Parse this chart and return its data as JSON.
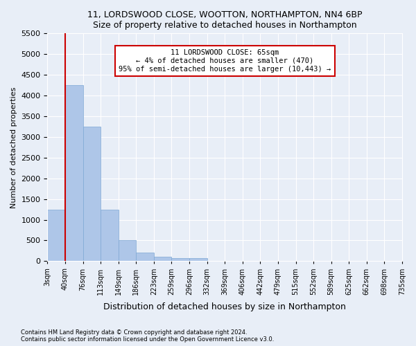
{
  "title": "11, LORDSWOOD CLOSE, WOOTTON, NORTHAMPTON, NN4 6BP",
  "subtitle": "Size of property relative to detached houses in Northampton",
  "xlabel": "Distribution of detached houses by size in Northampton",
  "ylabel": "Number of detached properties",
  "bin_labels": [
    "3sqm",
    "40sqm",
    "76sqm",
    "113sqm",
    "149sqm",
    "186sqm",
    "223sqm",
    "259sqm",
    "296sqm",
    "332sqm",
    "369sqm",
    "406sqm",
    "442sqm",
    "479sqm",
    "515sqm",
    "552sqm",
    "589sqm",
    "625sqm",
    "662sqm",
    "698sqm",
    "735sqm"
  ],
  "bar_heights": [
    1250,
    4250,
    3250,
    1250,
    500,
    200,
    100,
    75,
    75,
    0,
    0,
    0,
    0,
    0,
    0,
    0,
    0,
    0,
    0,
    0
  ],
  "bar_color": "#aec6e8",
  "bar_edge_color": "#7da8d4",
  "property_line_x": 1.0,
  "annotation_title": "11 LORDSWOOD CLOSE: 65sqm",
  "annotation_line1": "← 4% of detached houses are smaller (470)",
  "annotation_line2": "95% of semi-detached houses are larger (10,443) →",
  "annotation_box_color": "#ffffff",
  "annotation_box_edge": "#cc0000",
  "vline_color": "#cc0000",
  "ylim": [
    0,
    5500
  ],
  "yticks": [
    0,
    500,
    1000,
    1500,
    2000,
    2500,
    3000,
    3500,
    4000,
    4500,
    5000,
    5500
  ],
  "footer1": "Contains HM Land Registry data © Crown copyright and database right 2024.",
  "footer2": "Contains public sector information licensed under the Open Government Licence v3.0.",
  "background_color": "#e8eef7",
  "axes_background": "#e8eef7"
}
